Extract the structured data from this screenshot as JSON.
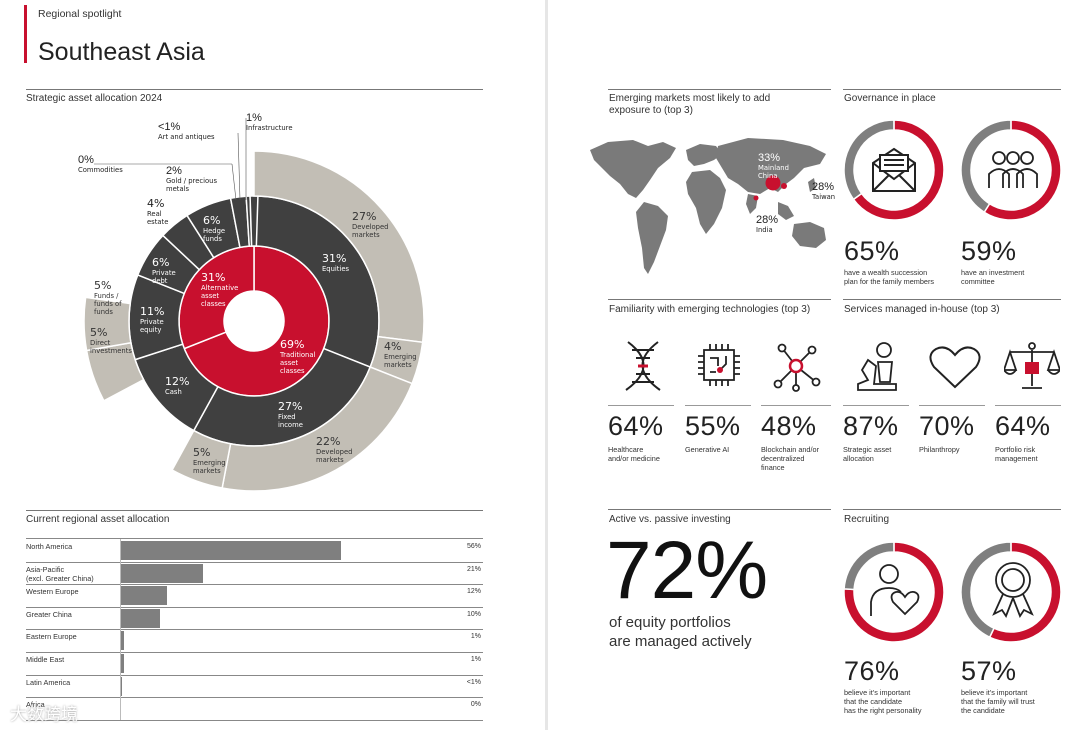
{
  "header": {
    "kicker": "Regional spotlight",
    "title": "Southeast Asia"
  },
  "sections": {
    "strategic": "Strategic asset allocation 2024",
    "current": "Current regional asset allocation",
    "emerging": "Emerging markets most likely to add exposure to (top 3)",
    "governance": "Governance in place",
    "familiarity": "Familiarity with emerging technologies (top 3)",
    "services": "Services managed in-house (top 3)",
    "active": "Active vs. passive investing",
    "recruiting": "Recruiting"
  },
  "chart_data": [
    {
      "type": "sunburst",
      "title": "Strategic asset allocation 2024",
      "inner": [
        {
          "pct": "31%",
          "label": "Alternative asset classes",
          "value": 31
        },
        {
          "pct": "69%",
          "label": "Traditional asset classes",
          "value": 69
        }
      ],
      "middle": [
        {
          "pct": "31%",
          "label": "Equities",
          "value": 31
        },
        {
          "pct": "27%",
          "label": "Fixed income",
          "value": 27
        },
        {
          "pct": "12%",
          "label": "Cash",
          "value": 12
        },
        {
          "pct": "11%",
          "label": "Private equity",
          "value": 11
        },
        {
          "pct": "6%",
          "label": "Private debt",
          "value": 6
        },
        {
          "pct": "4%",
          "label": "Real estate",
          "value": 4
        },
        {
          "pct": "6%",
          "label": "Hedge funds",
          "value": 6
        },
        {
          "pct": "2%",
          "label": "Gold / precious metals",
          "value": 2
        },
        {
          "pct": "0%",
          "label": "Commodities",
          "value": 0
        },
        {
          "pct": "<1%",
          "label": "Art and antiques",
          "value": 0.5
        },
        {
          "pct": "1%",
          "label": "Infrastructure",
          "value": 1
        }
      ],
      "outer": [
        {
          "pct": "27%",
          "label": "Developed markets",
          "value": 27
        },
        {
          "pct": "4%",
          "label": "Emerging markets",
          "value": 4
        },
        {
          "pct": "22%",
          "label": "Developed markets",
          "value": 22
        },
        {
          "pct": "5%",
          "label": "Emerging markets",
          "value": 5
        },
        {
          "pct": "5%",
          "label": "Funds / funds of funds",
          "value": 5
        },
        {
          "pct": "5%",
          "label": "Direct investments",
          "value": 5
        }
      ]
    },
    {
      "type": "bar",
      "title": "Current regional asset allocation",
      "categories": [
        "North America",
        "Asia-Pacific (excl. Greater China)",
        "Western Europe",
        "Greater China",
        "Eastern Europe",
        "Middle East",
        "Latin America",
        "Africa"
      ],
      "values": [
        56,
        21,
        12,
        10,
        1,
        1,
        0.5,
        0
      ],
      "value_labels": [
        "56%",
        "21%",
        "12%",
        "10%",
        "1%",
        "1%",
        "<1%",
        "0%"
      ]
    }
  ],
  "bar_rows": [
    {
      "label": "North America",
      "label2": "",
      "value": 56,
      "val": "56%"
    },
    {
      "label": "Asia-Pacific",
      "label2": "(excl. Greater China)",
      "value": 21,
      "val": "21%"
    },
    {
      "label": "Western Europe",
      "label2": "",
      "value": 12,
      "val": "12%"
    },
    {
      "label": "Greater China",
      "label2": "",
      "value": 10,
      "val": "10%"
    },
    {
      "label": "Eastern Europe",
      "label2": "",
      "value": 1,
      "val": "1%"
    },
    {
      "label": "Middle East",
      "label2": "",
      "value": 1,
      "val": "1%"
    },
    {
      "label": "Latin America",
      "label2": "",
      "value": 0.5,
      "val": "<1%"
    },
    {
      "label": "Africa",
      "label2": "",
      "value": 0,
      "val": "0%"
    }
  ],
  "map": {
    "china_pct": "33%",
    "china_label1": "Mainland",
    "china_label2": "China",
    "taiwan_pct": "28%",
    "taiwan_label": "Taiwan",
    "india_pct": "28%",
    "india_label": "India"
  },
  "governance": [
    {
      "pct": "65%",
      "value": 65,
      "caption1": "have a wealth succession",
      "caption2": "plan for the family members",
      "icon": "envelope-icon"
    },
    {
      "pct": "59%",
      "value": 59,
      "caption1": "have an investment",
      "caption2": "committee",
      "icon": "people-icon"
    }
  ],
  "tech": [
    {
      "pct": "64%",
      "caption1": "Healthcare",
      "caption2": "and/or medicine",
      "caption3": "",
      "icon": "dna-icon"
    },
    {
      "pct": "55%",
      "caption1": "Generative AI",
      "caption2": "",
      "caption3": "",
      "icon": "chip-icon"
    },
    {
      "pct": "48%",
      "caption1": "Blockchain and/or",
      "caption2": "decentralized",
      "caption3": "finance",
      "icon": "network-icon"
    }
  ],
  "services": [
    {
      "pct": "87%",
      "caption1": "Strategic asset",
      "caption2": "allocation",
      "icon": "chess-icon"
    },
    {
      "pct": "70%",
      "caption1": "Philanthropy",
      "caption2": "",
      "icon": "heart-icon"
    },
    {
      "pct": "64%",
      "caption1": "Portfolio risk",
      "caption2": "management",
      "icon": "scale-icon"
    }
  ],
  "active": {
    "pct": "72%",
    "value": 72,
    "line1": "of equity portfolios",
    "line2": "are managed actively"
  },
  "recruiting": [
    {
      "pct": "76%",
      "value": 76,
      "caption1": "believe it's important",
      "caption2": "that the candidate",
      "caption3": "has the right personality",
      "icon": "person-heart-icon"
    },
    {
      "pct": "57%",
      "value": 57,
      "caption1": "believe it's important",
      "caption2": "that the family will trust",
      "caption3": "the candidate",
      "icon": "award-icon"
    }
  ],
  "watermark": "大数跨境",
  "colors": {
    "red": "#c8102e",
    "dark": "#404040",
    "grey": "#7f7f7f",
    "beige": "#c2beb5"
  }
}
